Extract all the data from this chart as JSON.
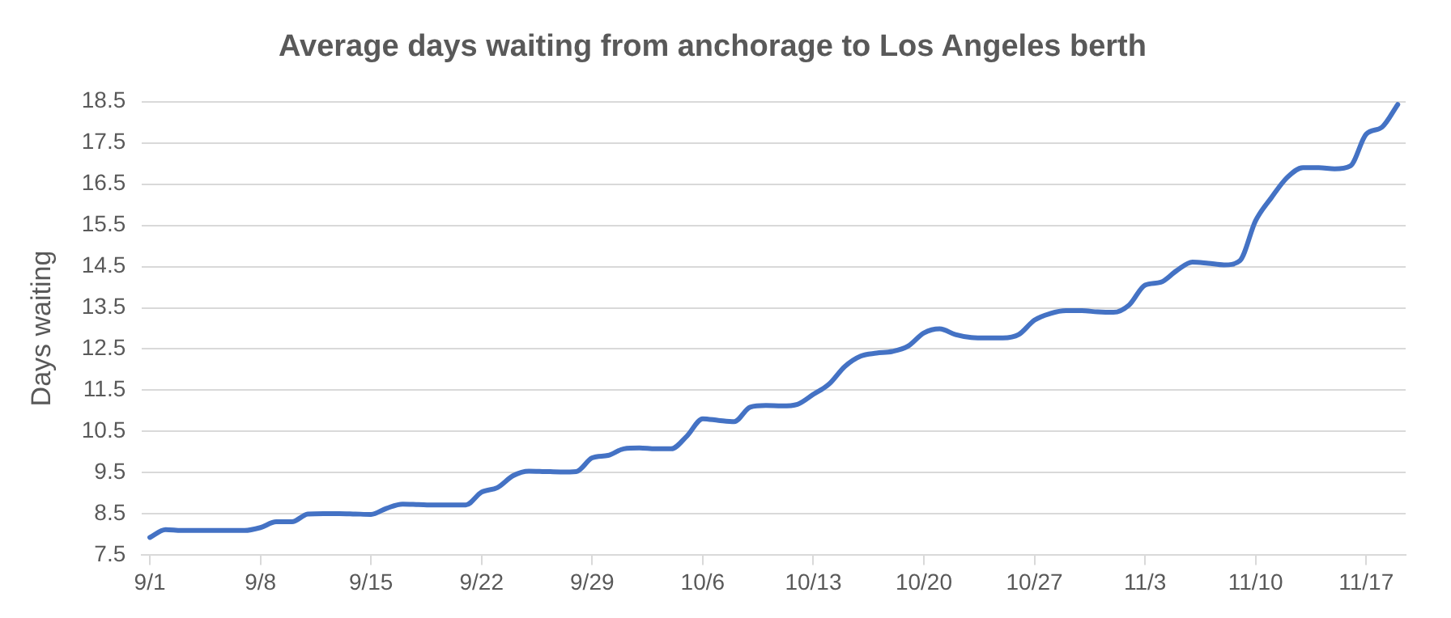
{
  "chart_data": {
    "type": "line",
    "title": "Average days waiting from anchorage to Los Angeles berth",
    "ylabel": "Days waiting",
    "categories": [
      "9/1",
      null,
      null,
      null,
      null,
      null,
      null,
      "9/8",
      null,
      null,
      null,
      null,
      null,
      null,
      "9/15",
      null,
      null,
      null,
      null,
      null,
      null,
      "9/22",
      null,
      null,
      null,
      null,
      null,
      null,
      "9/29",
      null,
      null,
      null,
      null,
      null,
      null,
      "10/6",
      null,
      null,
      null,
      null,
      null,
      null,
      "10/13",
      null,
      null,
      null,
      null,
      null,
      null,
      "10/20",
      null,
      null,
      null,
      null,
      null,
      null,
      "10/27",
      null,
      null,
      null,
      null,
      null,
      null,
      "11/3",
      null,
      null,
      null,
      null,
      null,
      null,
      "11/10",
      null,
      null,
      null,
      null,
      null,
      null,
      "11/17",
      null,
      null
    ],
    "series": [
      {
        "color": "#4472c4",
        "values": [
          7.93,
          8.12,
          8.1,
          8.1,
          8.1,
          8.1,
          8.1,
          8.17,
          8.31,
          8.31,
          8.5,
          8.51,
          8.51,
          8.5,
          8.49,
          8.64,
          8.74,
          8.73,
          8.72,
          8.72,
          8.72,
          9.03,
          9.14,
          9.43,
          9.54,
          9.53,
          9.52,
          9.53,
          9.86,
          9.92,
          10.08,
          10.1,
          10.08,
          10.08,
          10.39,
          10.81,
          10.77,
          10.74,
          11.09,
          11.13,
          11.12,
          11.16,
          11.4,
          11.65,
          12.08,
          12.33,
          12.4,
          12.44,
          12.57,
          12.89,
          12.99,
          12.85,
          12.78,
          12.77,
          12.77,
          12.85,
          13.2,
          13.36,
          13.43,
          13.43,
          13.4,
          13.39,
          13.57,
          14.05,
          14.12,
          14.4,
          14.61,
          14.58,
          14.54,
          14.64,
          15.61,
          16.17,
          16.66,
          16.9,
          16.9,
          16.87,
          16.94,
          17.71,
          17.88,
          18.43
        ]
      }
    ],
    "ylim": [
      7.5,
      18.5
    ],
    "yticks": [
      7.5,
      8.5,
      9.5,
      10.5,
      11.5,
      12.5,
      13.5,
      14.5,
      15.5,
      16.5,
      17.5,
      18.5
    ],
    "grid": "y",
    "marker": "none",
    "line_style": "solid"
  }
}
